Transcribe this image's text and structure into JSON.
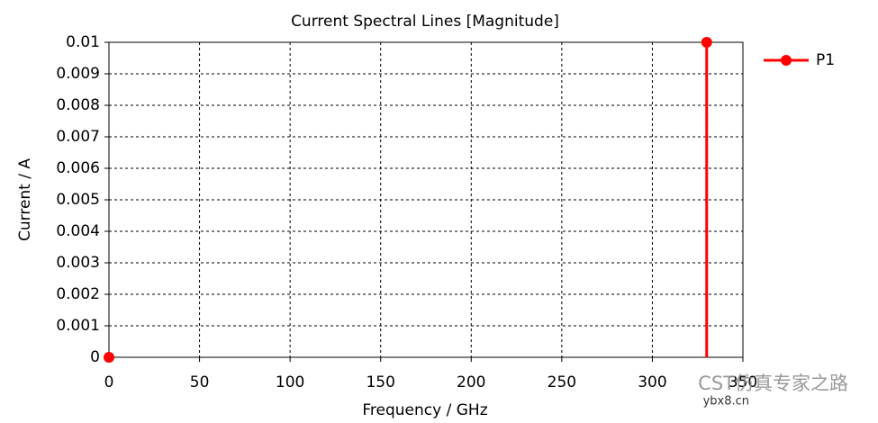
{
  "chart_data": {
    "type": "stem",
    "title": "Current Spectral Lines [Magnitude]",
    "x_label": "Frequency / GHz",
    "y_label": "Current / A",
    "series": [
      {
        "name": "P1",
        "color": "#ff0000",
        "x": [
          0,
          330
        ],
        "values": [
          0,
          0.01
        ]
      }
    ],
    "xlim": [
      0,
      350
    ],
    "xticks": [
      0,
      50,
      100,
      150,
      200,
      250,
      300,
      350
    ],
    "ylim": [
      0,
      0.01
    ],
    "yticks": [
      0,
      0.001,
      0.002,
      0.003,
      0.004,
      0.005,
      0.006,
      0.007,
      0.008,
      0.009,
      0.01
    ],
    "grid": true,
    "legend": "right",
    "watermark": [
      "CST仿真专家之路",
      "ybx8.cn"
    ]
  }
}
